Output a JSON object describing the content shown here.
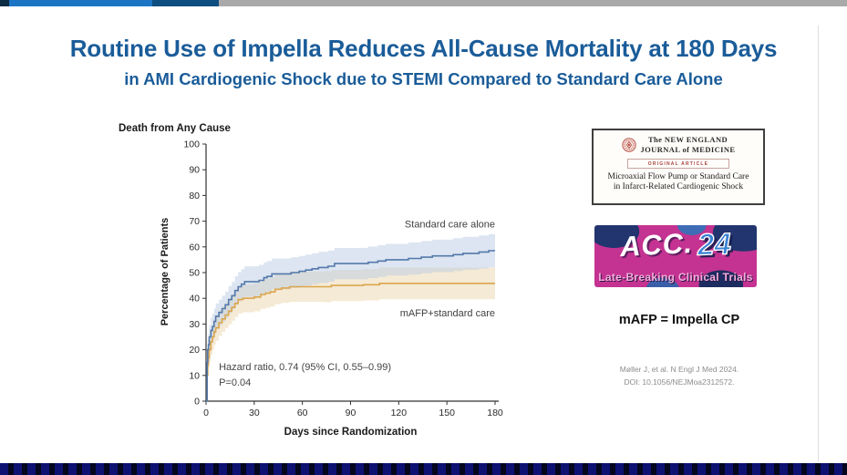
{
  "slide": {
    "title": "Routine Use of Impella Reduces All-Cause Mortality at 180 Days",
    "subtitle": "in AMI Cardiogenic Shock due to STEMI Compared to Standard Care Alone"
  },
  "chart_data": {
    "type": "line",
    "step": true,
    "title": "Death from Any Cause",
    "xlabel": "Days since Randomization",
    "ylabel": "Percentage of Patients",
    "xlim": [
      0,
      180
    ],
    "ylim": [
      0,
      100
    ],
    "xticks": [
      0,
      30,
      60,
      90,
      120,
      150,
      180
    ],
    "yticks": [
      0,
      10,
      20,
      30,
      40,
      50,
      60,
      70,
      80,
      90,
      100
    ],
    "grid": false,
    "legend_position": "inline-labels",
    "annotation_line1": "Hazard ratio, 0.74 (95% CI, 0.55–0.99)",
    "annotation_line2": "P=0.04",
    "annotation_pos": {
      "day": 8,
      "pct_line1": 12,
      "pct_line2": 6
    },
    "series": [
      {
        "name": "mAFP+standard care",
        "color": "#dba54d",
        "band_color": "#ecd6ab",
        "label_anchor": {
          "day": 180,
          "pct": 33
        },
        "points": [
          [
            0,
            0
          ],
          [
            0.7,
            10
          ],
          [
            1,
            14
          ],
          [
            1.5,
            17
          ],
          [
            2,
            20
          ],
          [
            3,
            23
          ],
          [
            4,
            25
          ],
          [
            5,
            27
          ],
          [
            6,
            28.5
          ],
          [
            8,
            30.5
          ],
          [
            10,
            32
          ],
          [
            12,
            33.5
          ],
          [
            14,
            35
          ],
          [
            16,
            36.5
          ],
          [
            18,
            38
          ],
          [
            20,
            39.5
          ],
          [
            23,
            40
          ],
          [
            30,
            40.5
          ],
          [
            34,
            41.5
          ],
          [
            37,
            42
          ],
          [
            40,
            42.5
          ],
          [
            43,
            43.5
          ],
          [
            47,
            44
          ],
          [
            52,
            44.5
          ],
          [
            74,
            44.5
          ],
          [
            78,
            45
          ],
          [
            98,
            45.3
          ],
          [
            108,
            45.8
          ],
          [
            180,
            45.8
          ]
        ],
        "ci_halfwidth": [
          [
            0,
            0
          ],
          [
            1,
            4
          ],
          [
            3,
            5
          ],
          [
            10,
            5
          ],
          [
            25,
            5.5
          ],
          [
            60,
            6
          ],
          [
            120,
            6.2
          ],
          [
            180,
            6.5
          ]
        ]
      },
      {
        "name": "Standard care alone",
        "color": "#5379ab",
        "band_color": "#b9cce4",
        "label_anchor": {
          "day": 180,
          "pct": 67.5
        },
        "points": [
          [
            0,
            0
          ],
          [
            0.7,
            15
          ],
          [
            1,
            20
          ],
          [
            1.5,
            22
          ],
          [
            2,
            25
          ],
          [
            3,
            27.5
          ],
          [
            4,
            29
          ],
          [
            5,
            31
          ],
          [
            6,
            33
          ],
          [
            8,
            34.5
          ],
          [
            10,
            36
          ],
          [
            12,
            37.5
          ],
          [
            14,
            39.5
          ],
          [
            16,
            41
          ],
          [
            18,
            43
          ],
          [
            20,
            44.5
          ],
          [
            22,
            45.5
          ],
          [
            24,
            46.5
          ],
          [
            33,
            47
          ],
          [
            36,
            48
          ],
          [
            38,
            48.5
          ],
          [
            41,
            49.5
          ],
          [
            50,
            49.5
          ],
          [
            53,
            50
          ],
          [
            58,
            50.5
          ],
          [
            62,
            51
          ],
          [
            66,
            51.5
          ],
          [
            70,
            52
          ],
          [
            76,
            52.5
          ],
          [
            80,
            53.5
          ],
          [
            96,
            53.5
          ],
          [
            101,
            54
          ],
          [
            107,
            54.5
          ],
          [
            112,
            55
          ],
          [
            126,
            55.5
          ],
          [
            134,
            56
          ],
          [
            141,
            56.5
          ],
          [
            148,
            56.5
          ],
          [
            154,
            57
          ],
          [
            160,
            57.5
          ],
          [
            170,
            58
          ],
          [
            176,
            58.5
          ],
          [
            180,
            58.5
          ]
        ],
        "ci_halfwidth": [
          [
            0,
            0
          ],
          [
            1,
            4
          ],
          [
            3,
            5
          ],
          [
            10,
            5
          ],
          [
            25,
            6
          ],
          [
            60,
            6
          ],
          [
            120,
            6.2
          ],
          [
            180,
            6.5
          ]
        ]
      }
    ]
  },
  "nejm": {
    "masthead_line1": "The NEW ENGLAND",
    "masthead_line2": "JOURNAL of MEDICINE",
    "article_tag": "ORIGINAL ARTICLE",
    "article_title_line1": "Microaxial Flow Pump or Standard Care",
    "article_title_line2": "in Infarct-Related Cardiogenic Shock"
  },
  "acc": {
    "brand": "ACC.",
    "year": "24",
    "tagline": "Late-Breaking Clinical Trials"
  },
  "note": "mAFP = Impella CP",
  "citation": {
    "line1": "Møller J, et al. N Engl J Med 2024.",
    "line2": "DOI: 10.1056/NEJMoa2312572."
  },
  "colors": {
    "title_blue": "#1a5c99",
    "top_bar_dark": "#0c2b45",
    "top_bar_blue": "#1c75c4",
    "top_bar_navy": "#0e4d80",
    "top_bar_gray": "#a9a9a9",
    "bottom_bar_navy": "#0d1272",
    "bottom_bar_black": "#04061e",
    "nejm_red": "#a94442",
    "acc_magenta": "#c43391",
    "acc_navy": "#22356f",
    "acc_blue_text": "#3b82d4"
  }
}
